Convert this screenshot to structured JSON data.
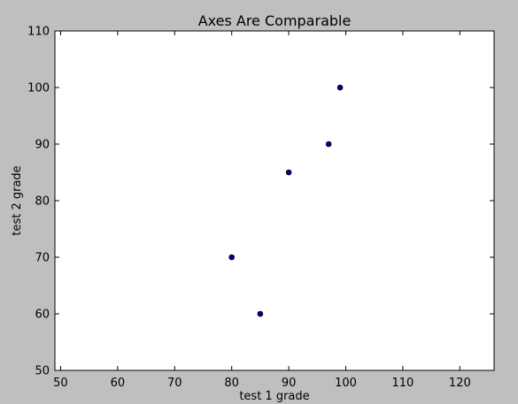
{
  "chart_data": {
    "type": "scatter",
    "title": "Axes Are Comparable",
    "xlabel": "test 1 grade",
    "ylabel": "test 2 grade",
    "xlim": [
      49,
      126
    ],
    "ylim": [
      50,
      110
    ],
    "xticks": [
      50,
      60,
      70,
      80,
      90,
      100,
      110,
      120
    ],
    "yticks": [
      50,
      60,
      70,
      80,
      90,
      100,
      110
    ],
    "grid": false,
    "series": [
      {
        "x": [
          99,
          97,
          90,
          80,
          85
        ],
        "y": [
          100,
          90,
          85,
          70,
          60
        ],
        "color": "#000080"
      }
    ]
  },
  "colors": {
    "background": "#bfbfbf",
    "plot_area": "#ffffff",
    "marker": "#000080"
  }
}
